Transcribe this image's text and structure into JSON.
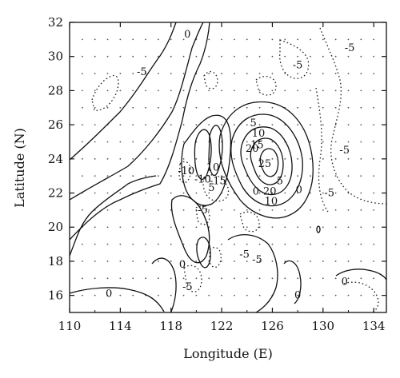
{
  "map": {
    "x_axis": {
      "title": "Longitude (E)",
      "range": [
        110,
        135
      ],
      "ticks": [
        "110",
        "114",
        "118",
        "122",
        "126",
        "130",
        "134"
      ]
    },
    "y_axis": {
      "title": "Latitude (N)",
      "range": [
        15,
        32
      ],
      "ticks": [
        "16",
        "18",
        "20",
        "22",
        "24",
        "26",
        "28",
        "30",
        "32"
      ]
    },
    "contour_labels": [
      {
        "text": "0",
        "lon": 124.7,
        "lat": 22.1
      },
      {
        "text": "0",
        "lon": 128.1,
        "lat": 22.2
      },
      {
        "text": "0",
        "lon": 118.9,
        "lat": 17.8
      },
      {
        "text": "0",
        "lon": 113.1,
        "lat": 16.1
      },
      {
        "text": "0",
        "lon": 128.0,
        "lat": 16.0
      },
      {
        "text": "0",
        "lon": 131.7,
        "lat": 16.8
      },
      {
        "text": "0",
        "lon": 119.3,
        "lat": 31.3
      },
      {
        "text": "-5",
        "lon": 115.7,
        "lat": 29.1
      },
      {
        "text": "-5",
        "lon": 128.0,
        "lat": 29.5
      },
      {
        "text": "-5",
        "lon": 132.1,
        "lat": 30.5
      },
      {
        "text": "-5",
        "lon": 131.7,
        "lat": 24.5
      },
      {
        "text": "-5",
        "lon": 130.5,
        "lat": 22.0
      },
      {
        "text": "-5",
        "lon": 120.5,
        "lat": 21.0
      },
      {
        "text": "-5",
        "lon": 123.8,
        "lat": 18.4
      },
      {
        "text": "-5",
        "lon": 124.8,
        "lat": 18.1
      },
      {
        "text": "-5",
        "lon": 119.3,
        "lat": 16.5
      },
      {
        "text": "-10",
        "lon": 119.2,
        "lat": 23.3
      },
      {
        "text": "-10",
        "lon": 120.5,
        "lat": 22.8
      },
      {
        "text": "-15",
        "lon": 121.7,
        "lat": 22.7
      },
      {
        "text": "5",
        "lon": 124.5,
        "lat": 26.1
      },
      {
        "text": "10",
        "lon": 124.9,
        "lat": 25.5
      },
      {
        "text": "15",
        "lon": 124.8,
        "lat": 24.8
      },
      {
        "text": "20",
        "lon": 124.4,
        "lat": 24.6
      },
      {
        "text": "25",
        "lon": 125.4,
        "lat": 23.7
      },
      {
        "text": "20",
        "lon": 125.8,
        "lat": 22.1
      },
      {
        "text": "10",
        "lon": 125.9,
        "lat": 21.5
      },
      {
        "text": "5",
        "lon": 126.6,
        "lat": 22.7
      },
      {
        "text": "10",
        "lon": 121.3,
        "lat": 23.5
      },
      {
        "text": "5",
        "lon": 121.2,
        "lat": 22.3
      }
    ]
  }
}
